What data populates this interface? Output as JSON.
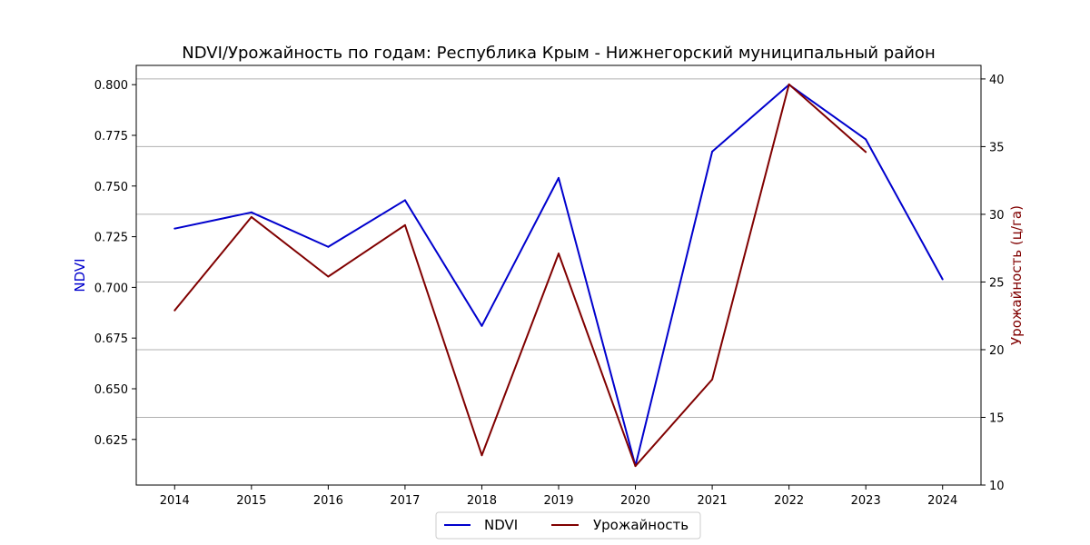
{
  "chart_data": {
    "type": "line",
    "title": "NDVI/Урожайность по годам: Республика Крым - Нижнегорский муниципальный район",
    "x": [
      2014,
      2015,
      2016,
      2017,
      2018,
      2019,
      2020,
      2021,
      2022,
      2023,
      2024
    ],
    "xlim": [
      2013.5,
      2024.5
    ],
    "grid": "horizontal lines at right-axis ticks",
    "legend_position": "bottom-center",
    "left_axis": {
      "label": "NDVI",
      "color": "#0000cd",
      "ylim": [
        0.6025,
        0.8095
      ],
      "ticks": [
        0.625,
        0.65,
        0.675,
        0.7,
        0.725,
        0.75,
        0.775,
        0.8
      ],
      "tick_labels": [
        "0.625",
        "0.650",
        "0.675",
        "0.700",
        "0.725",
        "0.750",
        "0.775",
        "0.800"
      ]
    },
    "right_axis": {
      "label": "Урожайность (ц/га)",
      "color": "#800000",
      "ylim": [
        10,
        41
      ],
      "ticks": [
        10,
        15,
        20,
        25,
        30,
        35,
        40
      ],
      "tick_labels": [
        "10",
        "15",
        "20",
        "25",
        "30",
        "35",
        "40"
      ]
    },
    "series": [
      {
        "name": "NDVI",
        "axis": "left",
        "color": "#0000cd",
        "values": [
          0.729,
          0.737,
          0.72,
          0.743,
          0.681,
          0.754,
          0.612,
          0.767,
          0.8,
          0.773,
          0.704
        ]
      },
      {
        "name": "Урожайность",
        "axis": "right",
        "color": "#800000",
        "values": [
          22.9,
          29.8,
          25.4,
          29.2,
          12.2,
          27.1,
          11.4,
          17.8,
          39.6,
          34.6,
          null
        ]
      }
    ]
  }
}
